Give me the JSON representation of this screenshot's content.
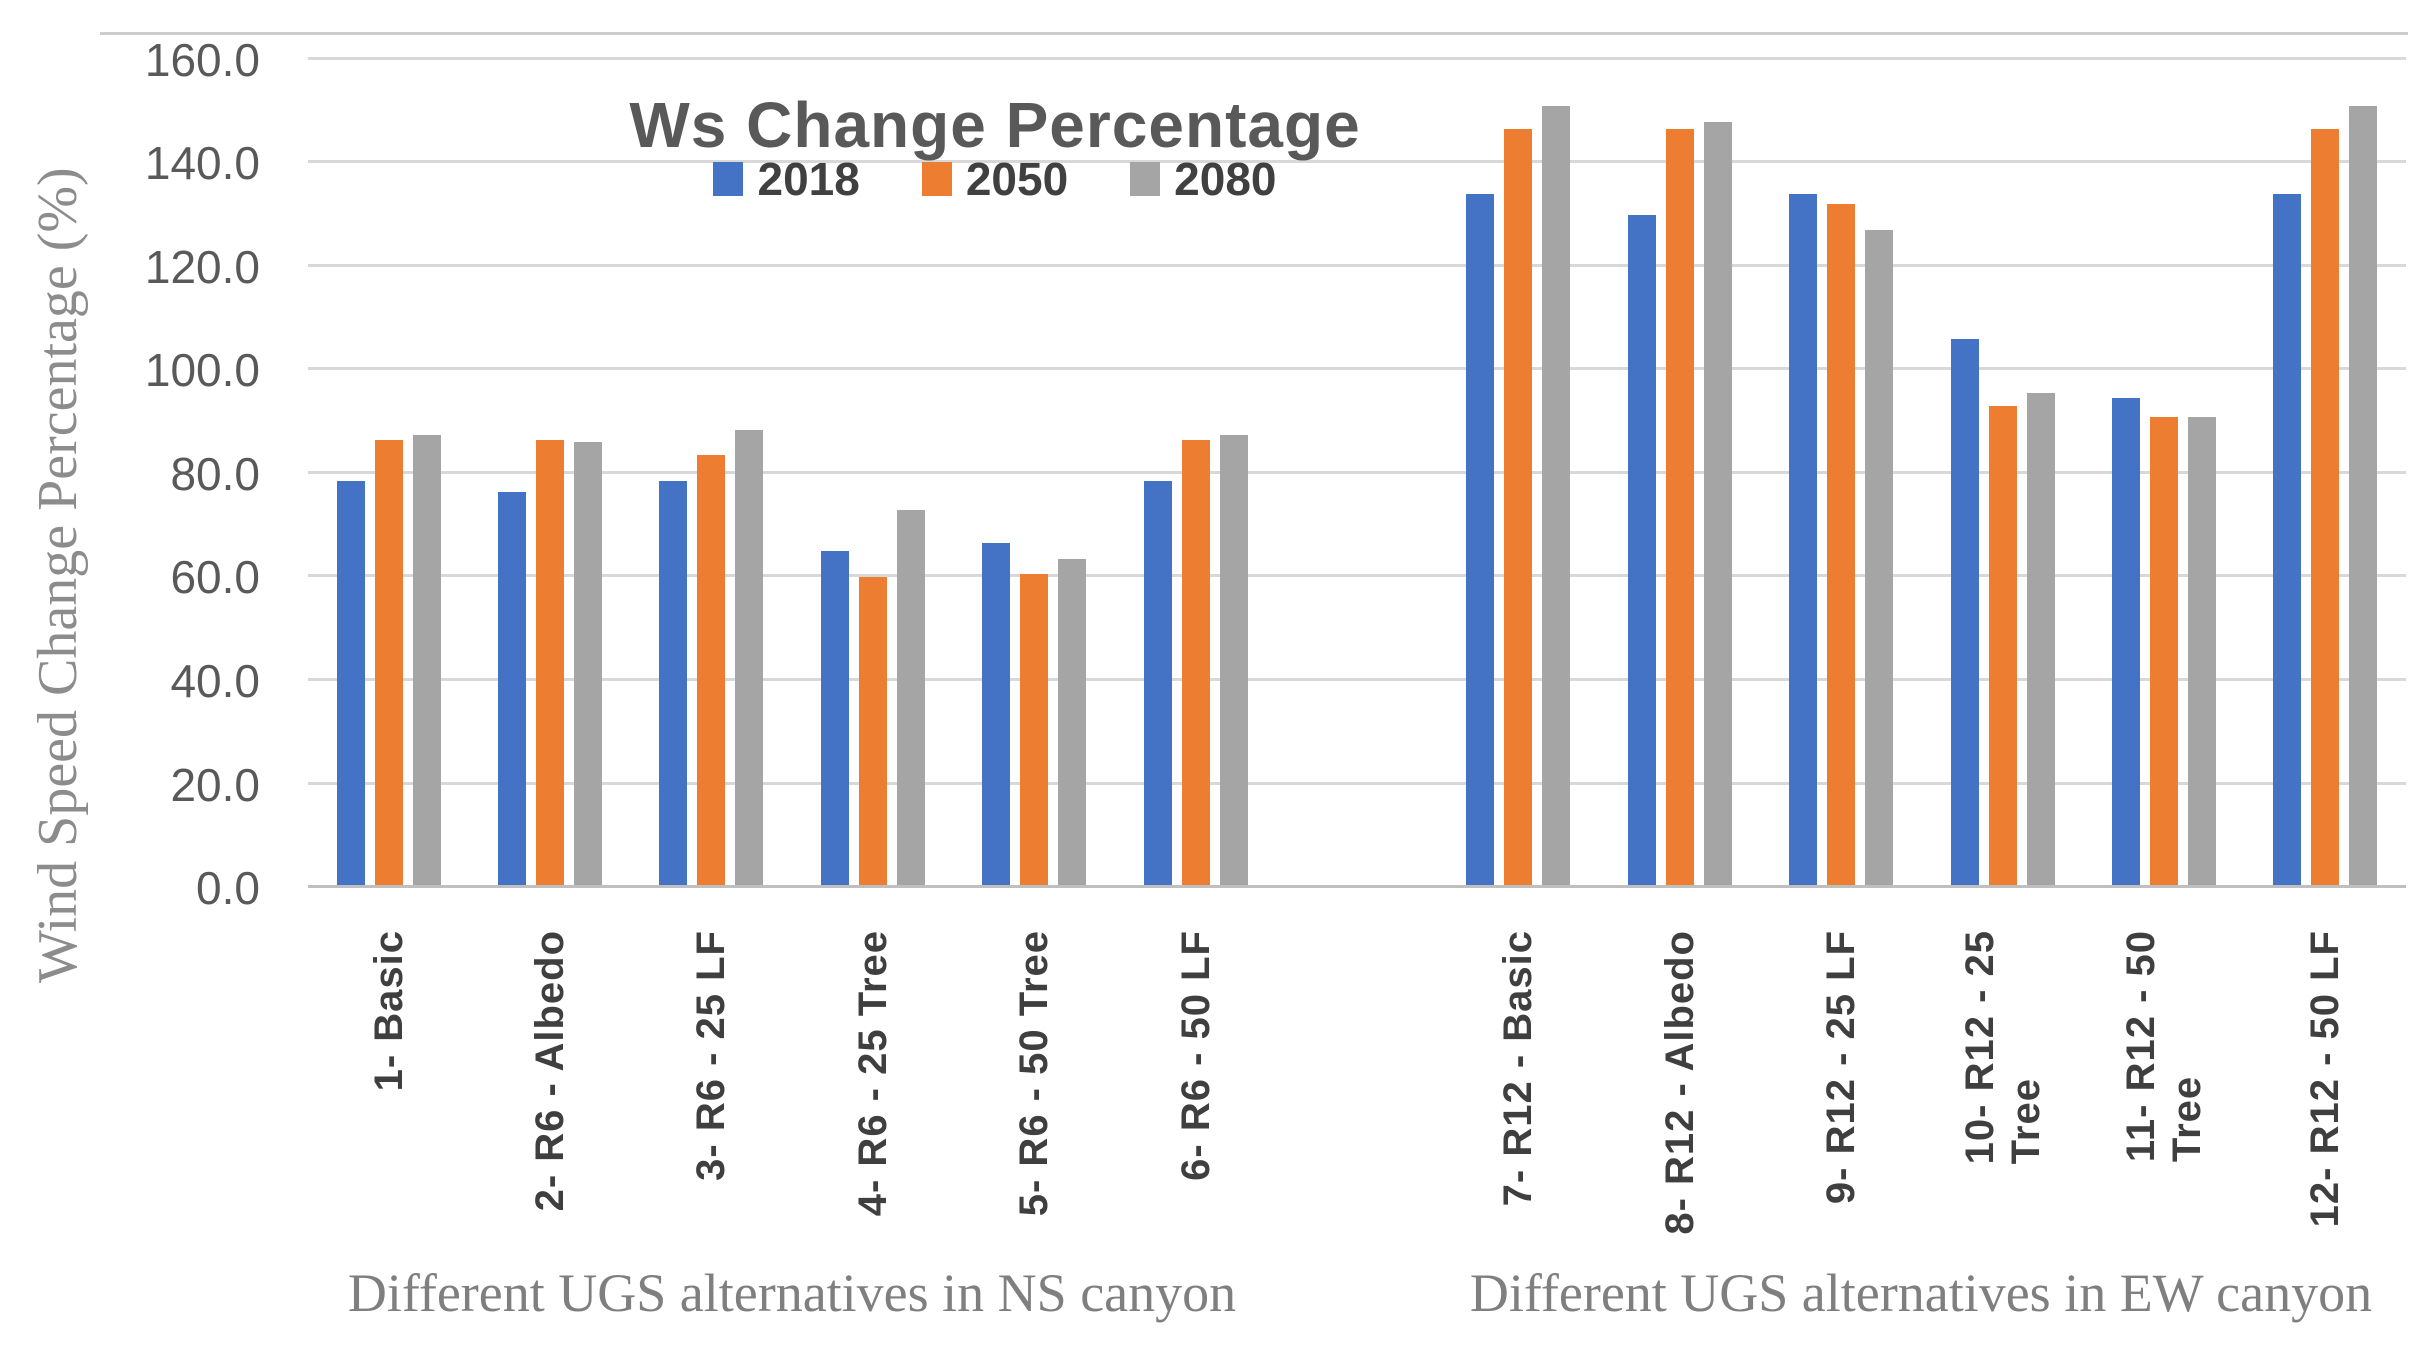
{
  "title": "Ws Change Percentage",
  "y_axis_title": "Wind Speed Change Percentage (%)",
  "captions": {
    "ns": "Different UGS alternatives in NS canyon",
    "ew": "Different UGS alternatives in EW canyon"
  },
  "colors": {
    "series_2018": "#4472C4",
    "series_2050": "#ED7D31",
    "series_2080": "#A5A5A5",
    "gridline": "#D8D8D8",
    "axis_line": "#BFBFBF",
    "title_text": "#595959",
    "tick_text": "#595959",
    "category_text": "#3F3F3F",
    "caption_text": "#7F7F7F"
  },
  "chart_data": {
    "type": "bar",
    "title": "Ws Change Percentage",
    "xlabel": "",
    "ylabel": "Wind Speed Change Percentage (%)",
    "ylim": [
      0,
      165
    ],
    "yticks": [
      0,
      20,
      40,
      60,
      80,
      100,
      120,
      140,
      160
    ],
    "ytick_format": "0.1f",
    "grid": true,
    "legend_position": "top-center",
    "categories": [
      {
        "label": "1- Basic",
        "lines": [
          "1- Basic"
        ],
        "slot": 0,
        "canyon": "NS"
      },
      {
        "label": "2- R6 - Albedo",
        "lines": [
          "2- R6 - Albedo"
        ],
        "slot": 1,
        "canyon": "NS"
      },
      {
        "label": "3- R6 - 25 LF",
        "lines": [
          "3- R6 - 25 LF"
        ],
        "slot": 2,
        "canyon": "NS"
      },
      {
        "label": "4- R6 - 25 Tree",
        "lines": [
          "4- R6 - 25 Tree"
        ],
        "slot": 3,
        "canyon": "NS"
      },
      {
        "label": "5- R6 - 50 Tree",
        "lines": [
          "5- R6 - 50 Tree"
        ],
        "slot": 4,
        "canyon": "NS"
      },
      {
        "label": "6- R6 - 50 LF",
        "lines": [
          "6- R6 - 50 LF"
        ],
        "slot": 5,
        "canyon": "NS"
      },
      {
        "label": "7- R12 - Basic",
        "lines": [
          "7- R12 - Basic"
        ],
        "slot": 7,
        "canyon": "EW"
      },
      {
        "label": "8- R12 - Albedo",
        "lines": [
          "8- R12 - Albedo"
        ],
        "slot": 8,
        "canyon": "EW"
      },
      {
        "label": "9- R12 - 25 LF",
        "lines": [
          "9- R12 - 25 LF"
        ],
        "slot": 9,
        "canyon": "EW"
      },
      {
        "label": "10- R12 - 25 Tree",
        "lines": [
          "10- R12 - 25",
          "Tree"
        ],
        "slot": 10,
        "canyon": "EW"
      },
      {
        "label": "11- R12 - 50 Tree",
        "lines": [
          "11- R12 - 50",
          "Tree"
        ],
        "slot": 11,
        "canyon": "EW"
      },
      {
        "label": "12- R12 - 50 LF",
        "lines": [
          "12- R12 - 50 LF"
        ],
        "slot": 12,
        "canyon": "EW"
      }
    ],
    "series": [
      {
        "name": "2018",
        "color": "#4472C4",
        "values": [
          78.0,
          76.0,
          78.0,
          64.5,
          66.0,
          78.0,
          133.5,
          129.5,
          133.5,
          105.5,
          94.0,
          133.5
        ]
      },
      {
        "name": "2050",
        "color": "#ED7D31",
        "values": [
          86.0,
          86.0,
          83.0,
          59.5,
          60.0,
          86.0,
          146.0,
          146.0,
          131.5,
          92.5,
          90.5,
          146.0
        ]
      },
      {
        "name": "2080",
        "color": "#A5A5A5",
        "values": [
          87.0,
          85.5,
          88.0,
          72.5,
          63.0,
          87.0,
          150.5,
          147.5,
          126.5,
          95.0,
          90.5,
          150.5
        ]
      }
    ],
    "group_captions": [
      {
        "text": "Different UGS alternatives in NS canyon",
        "applies_to": "slots 0-5"
      },
      {
        "text": "Different UGS alternatives in EW canyon",
        "applies_to": "slots 7-12"
      }
    ],
    "num_slots": 13,
    "blank_slot": 6
  }
}
